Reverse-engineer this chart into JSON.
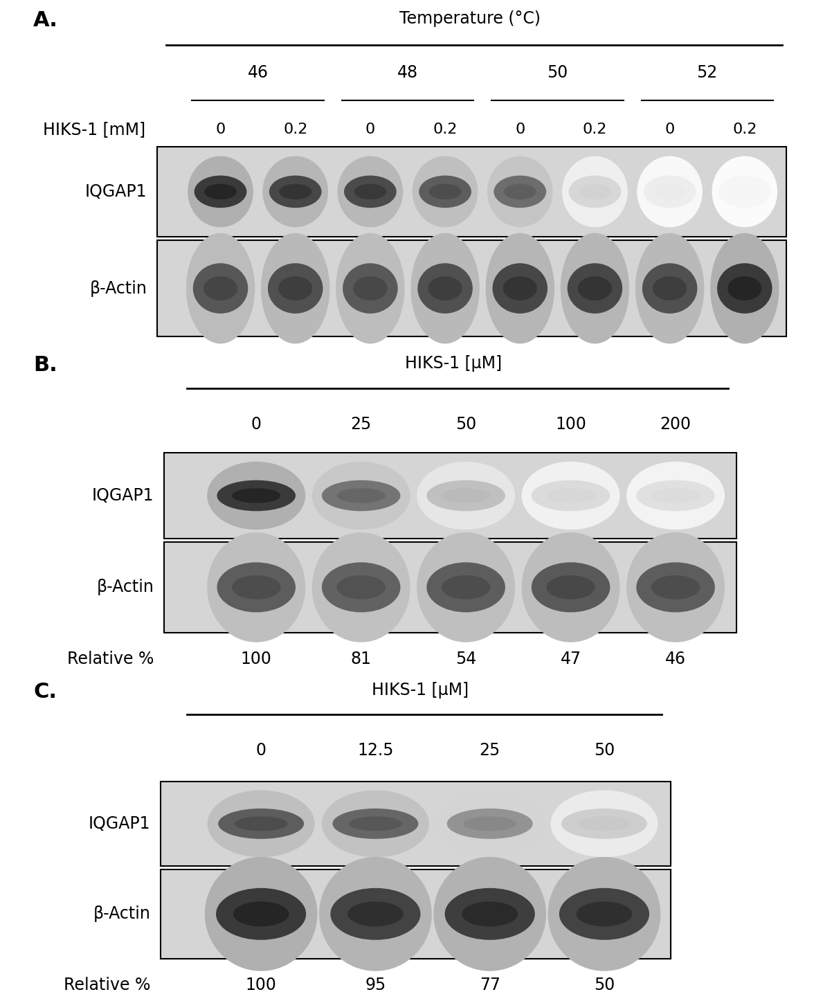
{
  "panel_A": {
    "label": "A.",
    "title": "Temperature (°C)",
    "header_label": "HIKS-1 [mM]",
    "temps": [
      "46",
      "48",
      "50",
      "52"
    ],
    "conc_labels": [
      "0",
      "0.2",
      "0",
      "0.2",
      "0",
      "0.2",
      "0",
      "0.2"
    ],
    "band1_label": "IQGAP1",
    "band2_label": "β-Actin",
    "iqgap1_intensities": [
      0.88,
      0.82,
      0.8,
      0.72,
      0.65,
      0.18,
      0.08,
      0.04
    ],
    "bactin_intensities": [
      0.75,
      0.78,
      0.74,
      0.78,
      0.82,
      0.82,
      0.78,
      0.88
    ]
  },
  "panel_B": {
    "label": "B.",
    "title": "HIKS-1 [μM]",
    "conc_labels": [
      "0",
      "25",
      "50",
      "100",
      "200"
    ],
    "band1_label": "IQGAP1",
    "band2_label": "β-Actin",
    "relative_label": "Relative %",
    "relative_values": [
      "100",
      "81",
      "54",
      "47",
      "46"
    ],
    "iqgap1_intensities": [
      0.88,
      0.62,
      0.28,
      0.16,
      0.14
    ],
    "bactin_intensities": [
      0.72,
      0.7,
      0.72,
      0.74,
      0.72
    ]
  },
  "panel_C": {
    "label": "C.",
    "title": "HIKS-1 [μM]",
    "conc_labels": [
      "0",
      "12.5",
      "25",
      "50"
    ],
    "band1_label": "IQGAP1",
    "band2_label": "β-Actin",
    "relative_label": "Relative %",
    "relative_values": [
      "100",
      "95",
      "77",
      "50"
    ],
    "iqgap1_intensities": [
      0.72,
      0.68,
      0.48,
      0.22
    ],
    "bactin_intensities": [
      0.88,
      0.84,
      0.86,
      0.84
    ]
  },
  "bg_light": "#d5d5d5",
  "font_size_text": 17,
  "font_size_panel": 22
}
